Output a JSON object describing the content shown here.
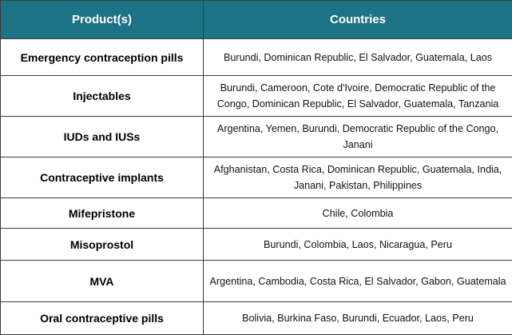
{
  "table": {
    "header": [
      "Product(s)",
      "Countries"
    ],
    "rows": [
      [
        "Emergency contraception pills",
        "Burundi, Dominican Republic, El Salvador, Guatemala, Laos"
      ],
      [
        "Injectables",
        "Burundi, Cameroon, Cote d'Ivoire, Democratic Republic of the Congo, Dominican Republic, El Salvador, Guatemala, Tanzania"
      ],
      [
        "IUDs and IUSs",
        "Argentina, Yemen, Burundi, Democratic Republic of the Congo, Janani"
      ],
      [
        "Contraceptive implants",
        "Afghanistan, Costa Rica, Dominican Republic, Guatemala, India, Janani, Pakistan, Philippines"
      ],
      [
        "Mifepristone",
        "Chile, Colombia"
      ],
      [
        "Misoprostol",
        "Burundi, Colombia, Laos, Nicaragua, Peru"
      ],
      [
        "MVA",
        "Argentina, Cambodia, Costa Rica, El Salvador, Gabon, Guatemala"
      ],
      [
        "Oral contraceptive pills",
        "Bolivia, Burkina Faso, Burundi, Ecuador, Laos, Peru"
      ]
    ]
  }
}
